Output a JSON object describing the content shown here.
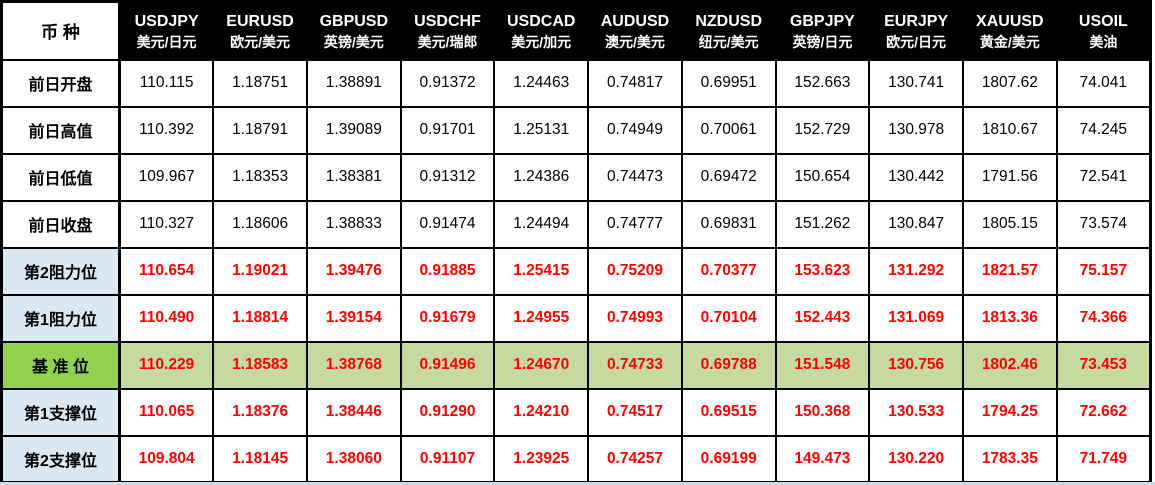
{
  "table": {
    "corner_label": "币 种",
    "columns": [
      {
        "code": "USDJPY",
        "name_cn": "美元/日元"
      },
      {
        "code": "EURUSD",
        "name_cn": "欧元/美元"
      },
      {
        "code": "GBPUSD",
        "name_cn": "英镑/美元"
      },
      {
        "code": "USDCHF",
        "name_cn": "美元/瑞郎"
      },
      {
        "code": "USDCAD",
        "name_cn": "美元/加元"
      },
      {
        "code": "AUDUSD",
        "name_cn": "澳元/美元"
      },
      {
        "code": "NZDUSD",
        "name_cn": "纽元/美元"
      },
      {
        "code": "GBPJPY",
        "name_cn": "英镑/日元"
      },
      {
        "code": "EURJPY",
        "name_cn": "欧元/日元"
      },
      {
        "code": "XAUUSD",
        "name_cn": "黄金/美元"
      },
      {
        "code": "USOIL",
        "name_cn": "美油"
      }
    ],
    "rows": [
      {
        "label": "前日开盘",
        "type": "prev",
        "values": [
          "110.115",
          "1.18751",
          "1.38891",
          "0.91372",
          "1.24463",
          "0.74817",
          "0.69951",
          "152.663",
          "130.741",
          "1807.62",
          "74.041"
        ]
      },
      {
        "label": "前日高值",
        "type": "prev",
        "values": [
          "110.392",
          "1.18791",
          "1.39089",
          "0.91701",
          "1.25131",
          "0.74949",
          "0.70061",
          "152.729",
          "130.978",
          "1810.67",
          "74.245"
        ]
      },
      {
        "label": "前日低值",
        "type": "prev",
        "values": [
          "109.967",
          "1.18353",
          "1.38381",
          "0.91312",
          "1.24386",
          "0.74473",
          "0.69472",
          "150.654",
          "130.442",
          "1791.56",
          "72.541"
        ]
      },
      {
        "label": "前日收盘",
        "type": "prev",
        "values": [
          "110.327",
          "1.18606",
          "1.38833",
          "0.91474",
          "1.24494",
          "0.74777",
          "0.69831",
          "151.262",
          "130.847",
          "1805.15",
          "73.574"
        ]
      },
      {
        "label": "第2阻力位",
        "type": "level",
        "values": [
          "110.654",
          "1.19021",
          "1.39476",
          "0.91885",
          "1.25415",
          "0.75209",
          "0.70377",
          "153.623",
          "131.292",
          "1821.57",
          "75.157"
        ]
      },
      {
        "label": "第1阻力位",
        "type": "level",
        "values": [
          "110.490",
          "1.18814",
          "1.39154",
          "0.91679",
          "1.24955",
          "0.74993",
          "0.70104",
          "152.443",
          "131.069",
          "1813.36",
          "74.366"
        ]
      },
      {
        "label": "基 准 位",
        "type": "pivot",
        "values": [
          "110.229",
          "1.18583",
          "1.38768",
          "0.91496",
          "1.24670",
          "0.74733",
          "0.69788",
          "151.548",
          "130.756",
          "1802.46",
          "73.453"
        ]
      },
      {
        "label": "第1支撑位",
        "type": "level",
        "values": [
          "110.065",
          "1.18376",
          "1.38446",
          "0.91290",
          "1.24210",
          "0.74517",
          "0.69515",
          "150.368",
          "130.533",
          "1794.25",
          "72.662"
        ]
      },
      {
        "label": "第2支撑位",
        "type": "level",
        "values": [
          "109.804",
          "1.18145",
          "1.38060",
          "0.91107",
          "1.23925",
          "0.74257",
          "0.69199",
          "149.473",
          "130.220",
          "1783.35",
          "71.749"
        ]
      }
    ]
  },
  "colors": {
    "header_bg": "#000000",
    "header_text": "#ffffff",
    "level_label_blue": "#dbe8f1",
    "pivot_label_green": "#92d050",
    "pivot_row_green": "#c7d9a1",
    "value_red": "#ff0000",
    "border_black": "#000000"
  }
}
